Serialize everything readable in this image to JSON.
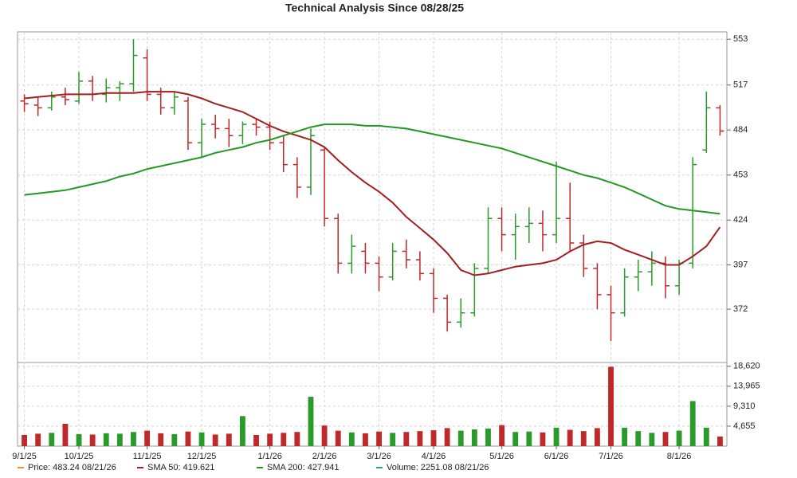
{
  "chart_data": {
    "type": "ohlc",
    "title": "Technical Analysis Since 08/28/25",
    "log": true,
    "grid": true,
    "up_color": "#2a9a2a",
    "down_color": "#c0282a",
    "legend": "bottom-left",
    "categories": [
      "9/1/25",
      null,
      null,
      null,
      "10/1/25",
      null,
      null,
      null,
      null,
      "11/1/25",
      null,
      null,
      null,
      "12/1/25",
      null,
      null,
      null,
      null,
      "1/1/26",
      null,
      null,
      null,
      "2/1/26",
      null,
      null,
      null,
      "3/1/26",
      null,
      null,
      null,
      "4/1/26",
      null,
      null,
      null,
      null,
      "5/1/26",
      null,
      null,
      null,
      "6/1/26",
      null,
      null,
      null,
      "7/1/26",
      null,
      null,
      null,
      null,
      "8/1/26",
      null,
      null,
      null
    ],
    "ylim": [
      344,
      559
    ],
    "yticks": [
      372,
      397,
      424,
      453,
      484,
      517,
      553
    ],
    "y2lim": [
      0,
      19500
    ],
    "y2ticks": [
      {
        "value": 4655,
        "label": "4,655"
      },
      {
        "value": 9310,
        "label": "9,310"
      },
      {
        "value": 13965,
        "label": "13,965"
      },
      {
        "value": 18620,
        "label": "18,620"
      }
    ],
    "series": [
      {
        "name": "Price: 483.24  08/21/26",
        "color": "#e8912d",
        "open": [
          505,
          502,
          500,
          508,
          505,
          520,
          510,
          515,
          518,
          538,
          510,
          500,
          505,
          475,
          488,
          485,
          480,
          488,
          486,
          475,
          460,
          445,
          470,
          425,
          398,
          405,
          398,
          390,
          405,
          400,
          392,
          378,
          365,
          370,
          395,
          425,
          415,
          420,
          422,
          415,
          425,
          410,
          395,
          380,
          370,
          390,
          393,
          398,
          385,
          398,
          470,
          500
        ],
        "high": [
          510,
          508,
          512,
          515,
          527,
          524,
          522,
          520,
          553,
          545,
          515,
          512,
          508,
          492,
          495,
          492,
          490,
          492,
          490,
          480,
          465,
          485,
          472,
          428,
          415,
          410,
          402,
          410,
          412,
          405,
          395,
          380,
          378,
          398,
          432,
          432,
          428,
          432,
          430,
          462,
          448,
          415,
          398,
          385,
          395,
          400,
          405,
          402,
          400,
          465,
          512,
          502
        ],
        "low": [
          497,
          494,
          498,
          502,
          503,
          505,
          504,
          505,
          512,
          505,
          495,
          495,
          470,
          465,
          478,
          472,
          474,
          480,
          470,
          455,
          438,
          440,
          420,
          392,
          392,
          392,
          382,
          388,
          395,
          388,
          370,
          360,
          362,
          368,
          392,
          405,
          400,
          410,
          405,
          410,
          405,
          390,
          372,
          355,
          368,
          382,
          385,
          378,
          380,
          395,
          468,
          480
        ],
        "close": [
          503,
          500,
          508,
          506,
          520,
          510,
          515,
          518,
          540,
          510,
          500,
          508,
          475,
          488,
          485,
          480,
          488,
          486,
          475,
          460,
          445,
          480,
          425,
          398,
          408,
          398,
          390,
          405,
          400,
          392,
          378,
          365,
          370,
          395,
          425,
          415,
          420,
          422,
          415,
          425,
          410,
          395,
          380,
          370,
          390,
          393,
          398,
          385,
          398,
          460,
          500,
          483.24
        ]
      },
      {
        "name": "SMA 50: 419.621",
        "color": "#a31f1f",
        "values": [
          507,
          508,
          509,
          510,
          510,
          510,
          511,
          511,
          511,
          512,
          512,
          512,
          510,
          507,
          503,
          500,
          497,
          492,
          487,
          483,
          480,
          477,
          472,
          463,
          455,
          448,
          442,
          435,
          426,
          419,
          412,
          404,
          394,
          391,
          392,
          394,
          396,
          397,
          398,
          400,
          405,
          409,
          411,
          410,
          406,
          403,
          400,
          397,
          397,
          402,
          408,
          419.621
        ]
      },
      {
        "name": "SMA 200: 427.941",
        "color": "#229922",
        "values": [
          440,
          441,
          442,
          443,
          445,
          447,
          449,
          452,
          454,
          457,
          459,
          461,
          463,
          465,
          468,
          470,
          472,
          475,
          477,
          480,
          483,
          486,
          488,
          488,
          488,
          487,
          487,
          486,
          485,
          483,
          481,
          479,
          477,
          475,
          473,
          471,
          468,
          465,
          462,
          459,
          456,
          453,
          451,
          448,
          445,
          441,
          437,
          433,
          431,
          430,
          429,
          427.941
        ]
      },
      {
        "name": "Volume: 2251.08  08/21/26",
        "color": "#2aa198",
        "axis": "y2",
        "values": [
          2600,
          2900,
          3100,
          5200,
          2800,
          2700,
          3000,
          2900,
          3300,
          3600,
          3000,
          2800,
          3400,
          3200,
          2700,
          2900,
          7000,
          2600,
          2900,
          3100,
          3300,
          11500,
          4800,
          3600,
          3200,
          3000,
          3400,
          3100,
          3300,
          3500,
          3700,
          4200,
          3600,
          3900,
          4100,
          4900,
          3300,
          3400,
          3200,
          4300,
          3800,
          3500,
          4200,
          18500,
          4300,
          3500,
          3100,
          3300,
          3600,
          10500,
          4300,
          2251.08
        ]
      }
    ]
  }
}
